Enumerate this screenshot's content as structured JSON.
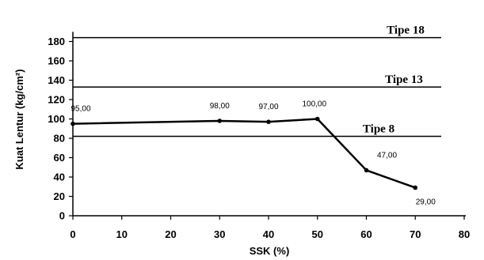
{
  "chart_data": {
    "type": "line",
    "xlabel": "SSK (%)",
    "ylabel": "Kuat Lentur  (kg/cm²)",
    "xlim": [
      0,
      80
    ],
    "ylim": [
      0,
      190
    ],
    "x_ticks": [
      "0",
      "10",
      "20",
      "30",
      "40",
      "50",
      "60",
      "70",
      "80"
    ],
    "y_ticks": [
      "0",
      "20",
      "40",
      "60",
      "80",
      "100",
      "120",
      "140",
      "160",
      "180"
    ],
    "grid": false,
    "series": [
      {
        "x": [
          0,
          30,
          40,
          50,
          60,
          70
        ],
        "y": [
          95,
          98,
          97,
          100,
          47,
          29
        ],
        "labels": [
          "95,00",
          "98,00",
          "97,00",
          "100,00",
          "47,00",
          "29,00"
        ]
      }
    ],
    "reference_lines": [
      {
        "label": "Tipe 18",
        "y": 184
      },
      {
        "label": "Tipe  13",
        "y": 133
      },
      {
        "label": "Tipe 8",
        "y": 82
      }
    ]
  }
}
